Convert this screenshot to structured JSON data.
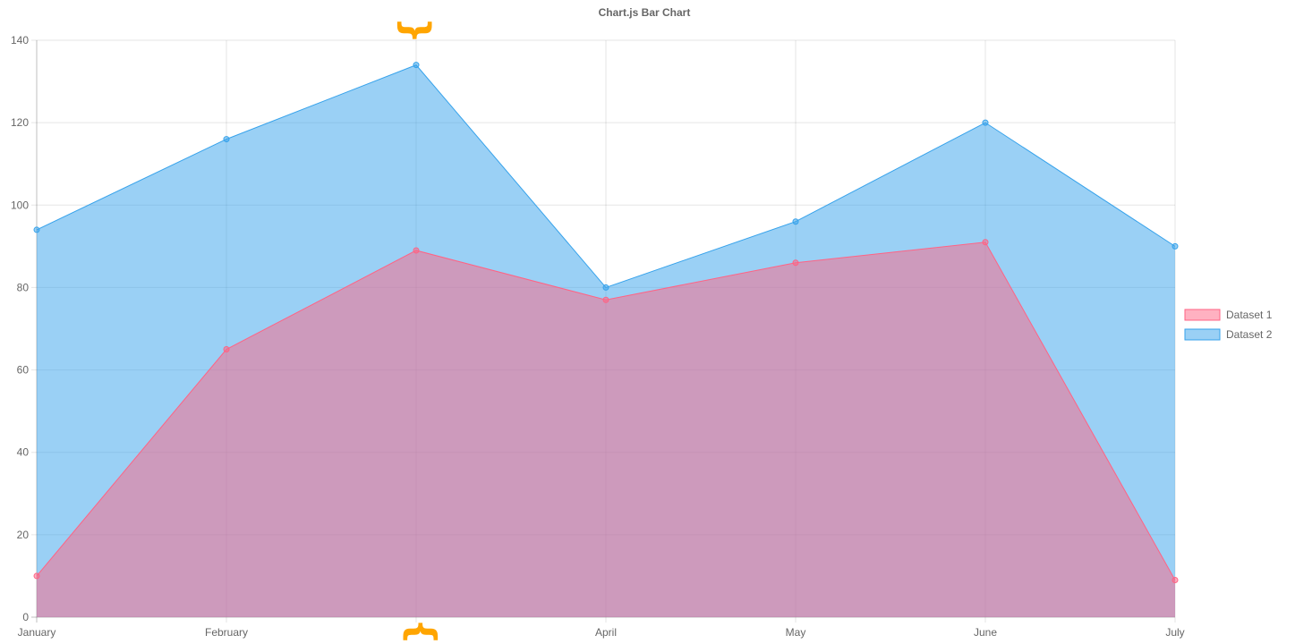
{
  "chart_data": {
    "type": "area",
    "title": "Chart.js Bar Chart",
    "categories": [
      "January",
      "February",
      "",
      "April",
      "May",
      "June",
      "July"
    ],
    "ylim": [
      0,
      140
    ],
    "yticks": [
      0,
      20,
      40,
      60,
      80,
      100,
      120,
      140
    ],
    "grid": true,
    "stacked": false,
    "legend_position": "right",
    "series": [
      {
        "name": "Dataset 1",
        "values": [
          10,
          65,
          89,
          77,
          86,
          91,
          9
        ],
        "stroke": "#ff6384",
        "fill": "#ff6384"
      },
      {
        "name": "Dataset 2",
        "values": [
          94,
          116,
          134,
          80,
          96,
          120,
          90
        ],
        "stroke": "#36a2eb",
        "fill": "#36a2eb"
      }
    ],
    "annotations": [
      {
        "text": "}",
        "category_index": 2,
        "color": "#ffa500"
      },
      {
        "text": "}",
        "category_index": 2,
        "color": "#ffa500"
      }
    ]
  }
}
